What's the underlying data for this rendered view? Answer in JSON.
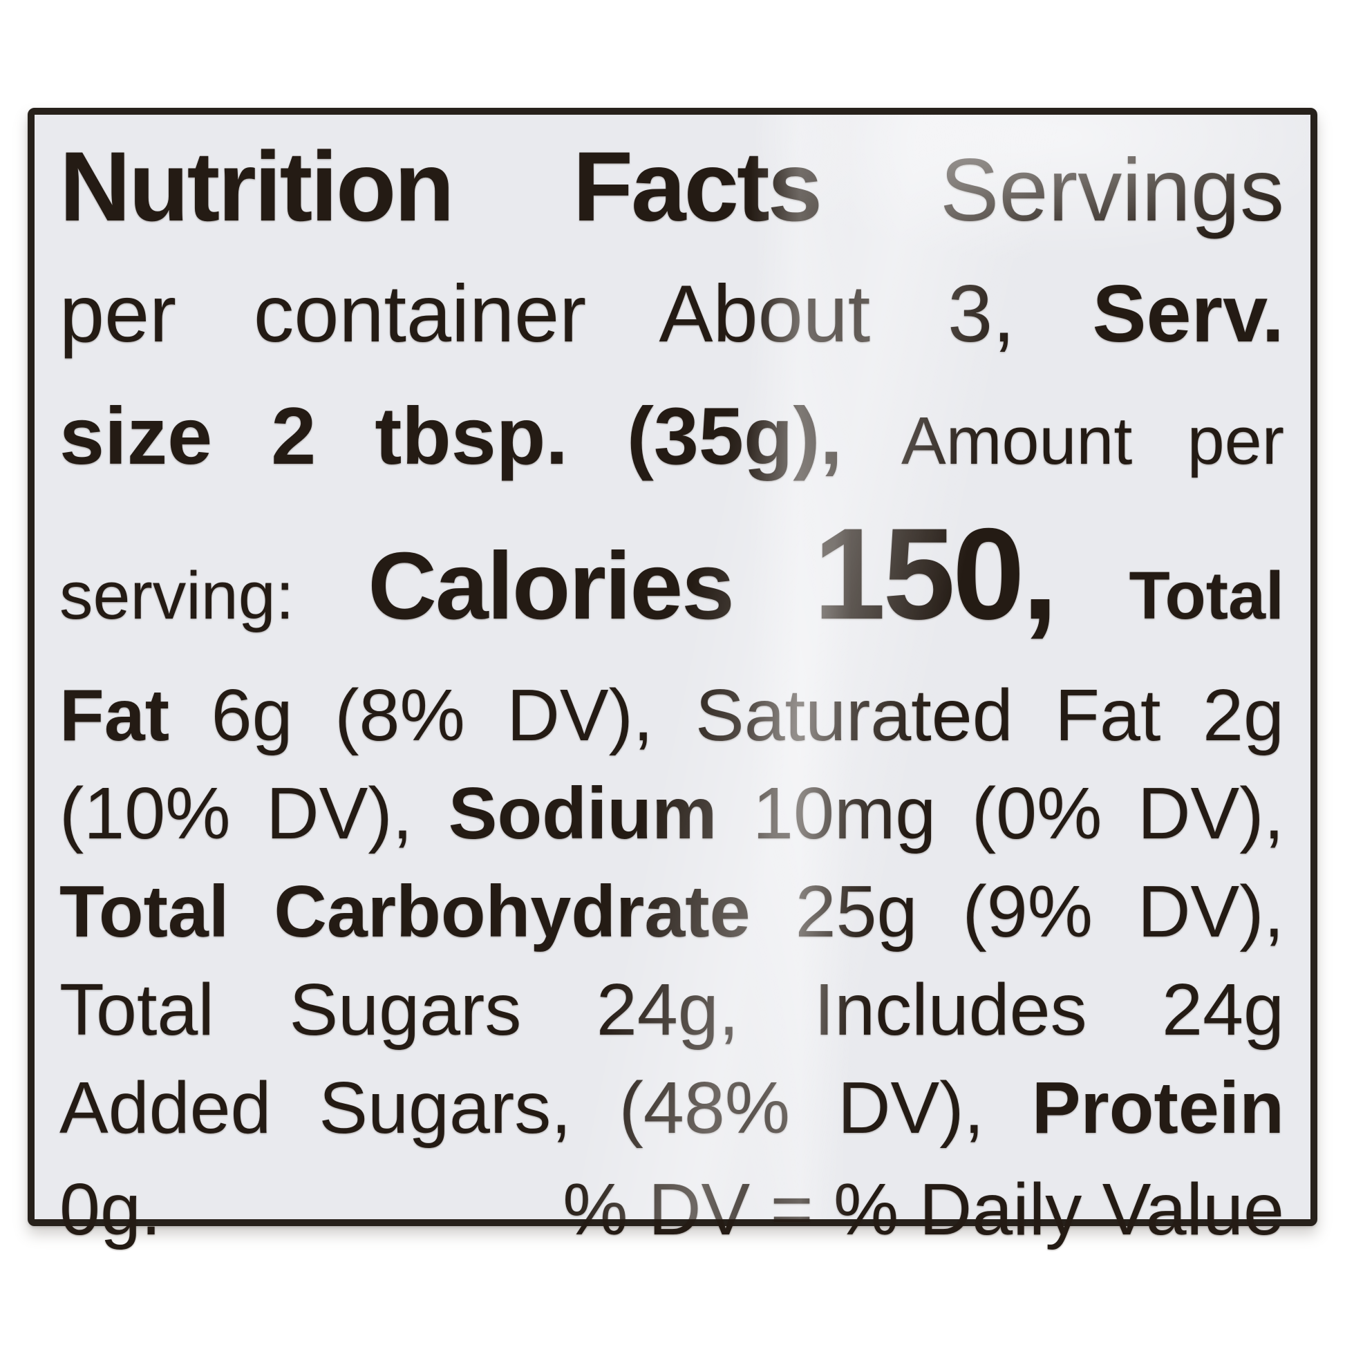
{
  "label": {
    "lines": {
      "l1a": "Nutrition Facts",
      "l1b": " Servings",
      "l2a": "per container About 3, ",
      "l2b": "Serv.",
      "l3a": "size 2 tbsp. (35g), ",
      "l3b": "Amount per",
      "l4a": "serving: ",
      "l4b": "Calories ",
      "l4c": "150,",
      "l4d": " Total",
      "l5a": "Fat",
      "l5b": " 6g (8% DV), Saturated Fat 2g",
      "l6a": "(10% DV), ",
      "l6b": "Sodium",
      "l6c": " 10mg (0% DV),",
      "l7a": "Total Carbohydrate",
      "l7b": " 25g (9% DV),",
      "l8a": "Total Sugars 24g, Includes 24g",
      "l9a": "Added Sugars, (48% DV), ",
      "l9b": "Protein",
      "l10a": "0g.",
      "l10b": "% DV = % Daily Value"
    },
    "facts": {
      "servings_per_container": "About 3",
      "serving_size": "2 tbsp. (35g)",
      "calories": "150",
      "total_fat": "6g (8% DV)",
      "saturated_fat": "2g (10% DV)",
      "sodium": "10mg (0% DV)",
      "total_carbohydrate": "25g (9% DV)",
      "total_sugars": "24g",
      "added_sugars": "Includes 24g (48% DV)",
      "protein": "0g",
      "footnote": "% DV = % Daily Value"
    },
    "colors": {
      "page_background": "#ffffff",
      "label_background": "#e9eaee",
      "border": "#27211b",
      "text": "#241b14"
    }
  }
}
